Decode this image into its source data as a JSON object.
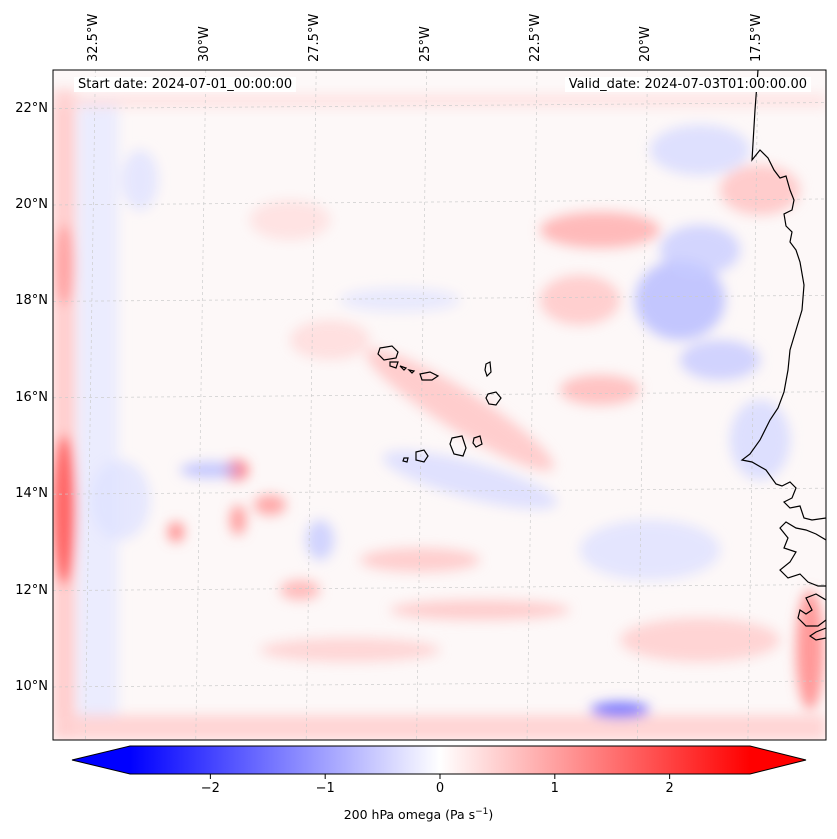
{
  "map": {
    "start_date": "Start date: 2024-07-01_00:00:00",
    "valid_date": "Valid_date: 2024-07-03T01:00:00.00",
    "lon_labels": [
      "32.5°W",
      "30°W",
      "27.5°W",
      "25°W",
      "22.5°W",
      "20°W",
      "17.5°W"
    ],
    "lat_labels": [
      "22°N",
      "20°N",
      "18°N",
      "16°N",
      "14°N",
      "12°N",
      "10°N"
    ],
    "lon_values": [
      -32.5,
      -30,
      -27.5,
      -25,
      -22.5,
      -20,
      -17.5
    ],
    "lat_values": [
      22,
      20,
      18,
      16,
      14,
      12,
      10
    ],
    "extent": {
      "lon_min": -33.3,
      "lon_max": -15.8,
      "lat_min": 8.9,
      "lat_max": 22.8
    },
    "field": "200 hPa omega",
    "gridlines": true
  },
  "colorbar": {
    "label_text": "200 hPa omega (Pa s",
    "label_exp": "−1",
    "label_close": ")",
    "ticks": [
      "−2",
      "−1",
      "0",
      "1",
      "2"
    ],
    "tick_values": [
      -2,
      -1,
      0,
      1,
      2
    ],
    "range": [
      -2.7,
      2.7
    ],
    "cmap": "bwr",
    "colors": {
      "min": "#0000ff",
      "mid": "#ffffff",
      "max": "#ff0000"
    },
    "extend": "both"
  }
}
